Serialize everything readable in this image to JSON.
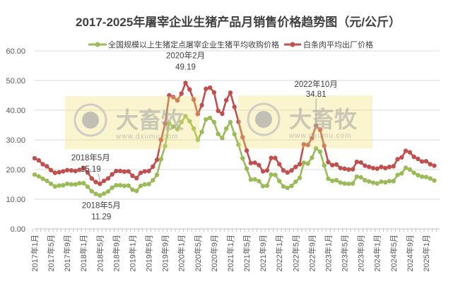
{
  "chart_data": {
    "type": "line",
    "title": "2017-2025年屠宰企业生猪产品月销售价格趋势图（元/公斤）",
    "xlabel": "",
    "ylabel": "",
    "ylim": [
      0,
      60
    ],
    "yticks": [
      "0.00",
      "10.00",
      "20.00",
      "30.00",
      "40.00",
      "50.00",
      "60.00"
    ],
    "grid": true,
    "legend_position": "top",
    "x_start": "2017-01",
    "x_end": "2025-03",
    "xtick_labels": [
      "2017年1月",
      "2017年5月",
      "2017年9月",
      "2018年1月",
      "2018年5月",
      "2018年9月",
      "2019年1月",
      "2019年5月",
      "2019年9月",
      "2020年1月",
      "2020年5月",
      "2020年9月",
      "2021年1月",
      "2021年5月",
      "2021年9月",
      "2022年1月",
      "2022年5月",
      "2022年9月",
      "2023年1月",
      "2023年5月",
      "2023年9月",
      "2024年1月",
      "2024年5月",
      "2024年9月",
      "2025年1月"
    ],
    "series": [
      {
        "name": "全国规模以上生猪定点屠宰企业生猪平均收购价格",
        "color": "#9BBB59",
        "values": [
          18.3,
          17.7,
          16.9,
          16.2,
          15.2,
          14.3,
          14.6,
          14.7,
          15.2,
          15.0,
          15.0,
          15.4,
          15.4,
          14.2,
          12.7,
          11.8,
          11.29,
          11.9,
          12.6,
          13.9,
          14.7,
          14.7,
          14.5,
          14.6,
          13.2,
          12.8,
          14.5,
          15.0,
          15.1,
          16.4,
          18.2,
          23.5,
          27.9,
          35.5,
          34.5,
          33.6,
          36.0,
          38.0,
          36.3,
          33.8,
          30.0,
          32.7,
          36.9,
          37.4,
          36.0,
          32.0,
          30.6,
          33.8,
          36.0,
          31.9,
          28.4,
          23.8,
          20.3,
          16.6,
          16.7,
          16.1,
          14.4,
          14.6,
          18.3,
          18.2,
          16.1,
          14.3,
          13.8,
          14.5,
          15.9,
          17.2,
          22.3,
          22.0,
          24.0,
          27.2,
          26.0,
          21.4,
          16.9,
          16.2,
          16.4,
          15.6,
          15.3,
          15.2,
          15.3,
          17.6,
          17.4,
          16.4,
          16.0,
          15.6,
          15.3,
          15.9,
          15.7,
          16.1,
          16.1,
          18.2,
          18.7,
          20.6,
          20.0,
          18.9,
          18.1,
          17.6,
          17.5,
          17.0,
          16.3
        ]
      },
      {
        "name": "白条肉平均出厂价格",
        "color": "#C0504D",
        "values": [
          23.8,
          23.1,
          21.8,
          21.1,
          19.8,
          18.9,
          19.1,
          19.4,
          19.8,
          19.7,
          19.5,
          19.9,
          20.5,
          19.0,
          17.0,
          15.8,
          15.19,
          16.2,
          17.0,
          18.4,
          19.5,
          19.5,
          19.3,
          19.4,
          17.9,
          17.1,
          18.9,
          19.4,
          19.5,
          21.0,
          23.3,
          30.0,
          35.5,
          45.0,
          44.4,
          43.3,
          45.6,
          49.19,
          47.0,
          43.6,
          38.7,
          41.7,
          47.2,
          47.6,
          46.0,
          39.8,
          38.8,
          43.4,
          45.9,
          41.1,
          36.1,
          30.9,
          26.4,
          22.2,
          22.3,
          21.5,
          19.4,
          19.7,
          23.9,
          23.9,
          21.8,
          19.7,
          19.0,
          19.7,
          20.9,
          21.8,
          28.5,
          28.3,
          30.6,
          34.81,
          33.4,
          28.0,
          22.5,
          21.5,
          21.7,
          20.5,
          20.3,
          20.0,
          20.1,
          22.6,
          22.4,
          21.3,
          20.9,
          20.5,
          20.3,
          20.9,
          20.5,
          20.9,
          21.1,
          23.5,
          24.1,
          26.3,
          25.8,
          24.3,
          23.6,
          22.7,
          22.8,
          21.8,
          21.3
        ]
      }
    ],
    "annotations": [
      {
        "series": 1,
        "index": 37,
        "label": "2020年2月",
        "value": "49.19"
      },
      {
        "series": 1,
        "index": 16,
        "label": "2018年5月",
        "value": "15.19"
      },
      {
        "series": 0,
        "index": 16,
        "label": "2018年5月",
        "value": "11.29"
      },
      {
        "series": 1,
        "index": 69,
        "label": "2022年10月",
        "value": "34.81"
      }
    ]
  },
  "watermark": {
    "logo_text": "大畜牧",
    "url_text": "www.dxumu.com"
  }
}
